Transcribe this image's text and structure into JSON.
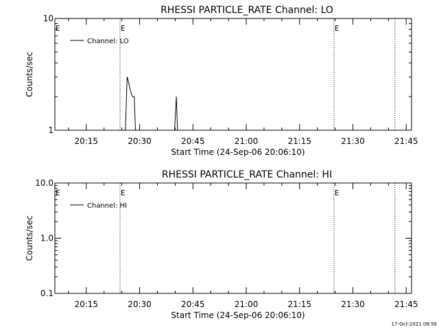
{
  "chart_data": [
    {
      "type": "line",
      "title": "RHESSI PARTICLE_RATE Channel: LO",
      "xlabel": "Start Time (24-Sep-06 20:06:10)",
      "ylabel": "Counts/sec",
      "yscale": "log",
      "ylim": [
        1,
        10
      ],
      "y_ticks": [
        "1",
        "10"
      ],
      "xlim": [
        "20:06:10",
        "21:46:30"
      ],
      "x_ticks": [
        "20:15",
        "20:30",
        "20:45",
        "21:00",
        "21:15",
        "21:30",
        "21:45"
      ],
      "legend": {
        "placement": "top-left",
        "entries": [
          "Channel: LO"
        ]
      },
      "event_lines": [
        {
          "time": "20:24:30",
          "label": "E"
        },
        {
          "time": "21:24:40",
          "label": "E"
        },
        {
          "time": "21:41:50",
          "label": ""
        }
      ],
      "series": [
        {
          "name": "Channel: LO",
          "x": [
            "20:26:00",
            "20:26:30",
            "20:27:00",
            "20:27:30",
            "20:28:00",
            "20:28:30",
            "20:28:50",
            "20:39:50",
            "20:40:20",
            "20:40:40"
          ],
          "y": [
            1,
            3.0,
            2.6,
            2.2,
            2.0,
            2.0,
            1,
            1,
            2.0,
            1
          ]
        }
      ]
    },
    {
      "type": "line",
      "title": "RHESSI PARTICLE_RATE Channel: HI",
      "xlabel": "Start Time (24-Sep-06 20:06:10)",
      "ylabel": "Counts/sec",
      "yscale": "log",
      "ylim": [
        0.1,
        10
      ],
      "y_ticks": [
        "0.1",
        "1.0",
        "10.0"
      ],
      "xlim": [
        "20:06:10",
        "21:46:30"
      ],
      "x_ticks": [
        "20:15",
        "20:30",
        "20:45",
        "21:00",
        "21:15",
        "21:30",
        "21:45"
      ],
      "legend": {
        "placement": "top-left",
        "entries": [
          "Channel: HI"
        ]
      },
      "event_lines": [
        {
          "time": "20:24:30",
          "label": "E"
        },
        {
          "time": "21:24:40",
          "label": "E"
        },
        {
          "time": "21:41:50",
          "label": ""
        }
      ],
      "series": [
        {
          "name": "Channel: HI",
          "x": [],
          "y": []
        }
      ]
    }
  ],
  "footer": {
    "timestamp": "17-Oct-2021 08:56"
  }
}
